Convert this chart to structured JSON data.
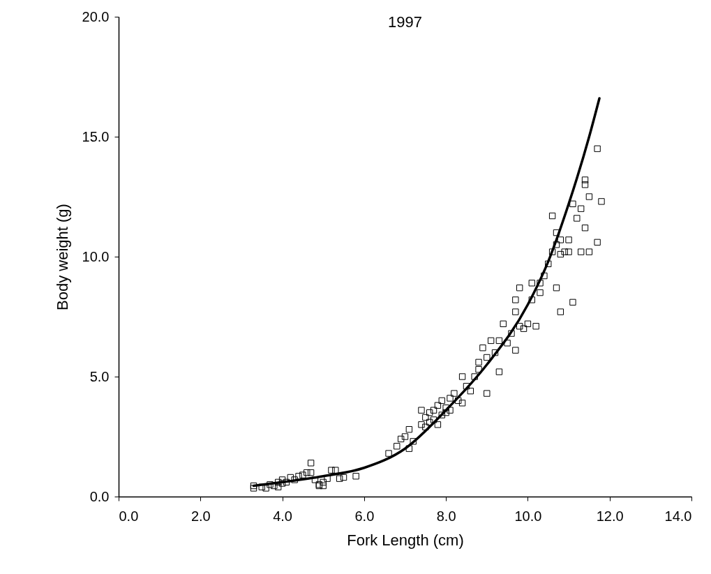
{
  "chart_data": {
    "type": "scatter",
    "title": "1997",
    "xlabel": "Fork Length (cm)",
    "ylabel": "Body weight (g)",
    "xlim": [
      0,
      14
    ],
    "ylim": [
      0,
      20
    ],
    "xticks": [
      {
        "value": 0,
        "label": "0.0"
      },
      {
        "value": 2,
        "label": "2.0"
      },
      {
        "value": 4,
        "label": "4.0"
      },
      {
        "value": 6,
        "label": "6.0"
      },
      {
        "value": 8,
        "label": "8.0"
      },
      {
        "value": 10,
        "label": "10.0"
      },
      {
        "value": 12,
        "label": "12.0"
      },
      {
        "value": 14,
        "label": "14.0"
      }
    ],
    "yticks": [
      {
        "value": 0,
        "label": "0.0"
      },
      {
        "value": 5,
        "label": "5.0"
      },
      {
        "value": 10,
        "label": "10.0"
      },
      {
        "value": 15,
        "label": "15.0"
      },
      {
        "value": 20,
        "label": "20.0"
      }
    ],
    "grid": false,
    "series": [
      {
        "marker": "square",
        "color": "#000000",
        "x": [
          3.3,
          3.3,
          3.5,
          3.6,
          3.7,
          3.8,
          3.9,
          3.9,
          4.0,
          4.0,
          4.1,
          4.2,
          4.3,
          4.4,
          4.5,
          4.6,
          4.7,
          4.7,
          4.8,
          4.9,
          4.9,
          5.0,
          5.0,
          5.1,
          5.2,
          5.3,
          5.4,
          5.5,
          5.8,
          6.6,
          6.8,
          6.9,
          7.0,
          7.1,
          7.1,
          7.2,
          7.4,
          7.4,
          7.5,
          7.5,
          7.6,
          7.6,
          7.7,
          7.7,
          7.8,
          7.8,
          7.9,
          7.9,
          8.0,
          8.0,
          8.1,
          8.1,
          8.2,
          8.3,
          8.4,
          8.4,
          8.5,
          8.6,
          8.7,
          8.8,
          8.8,
          8.9,
          9.0,
          9.0,
          9.1,
          9.2,
          9.3,
          9.3,
          9.4,
          9.5,
          9.6,
          9.7,
          9.7,
          9.7,
          9.8,
          9.8,
          9.9,
          10.0,
          10.1,
          10.1,
          10.2,
          10.3,
          10.3,
          10.4,
          10.5,
          10.6,
          10.6,
          10.7,
          10.7,
          10.7,
          10.8,
          10.8,
          10.8,
          10.9,
          11.0,
          11.0,
          11.1,
          11.1,
          11.2,
          11.3,
          11.3,
          11.4,
          11.4,
          11.4,
          11.5,
          11.5,
          11.7,
          11.7,
          11.8
        ],
        "values": [
          0.35,
          0.45,
          0.4,
          0.35,
          0.5,
          0.45,
          0.6,
          0.4,
          0.55,
          0.7,
          0.6,
          0.8,
          0.7,
          0.85,
          0.9,
          1.0,
          1.0,
          1.4,
          0.7,
          0.45,
          0.5,
          0.45,
          0.6,
          0.75,
          1.1,
          1.1,
          0.75,
          0.8,
          0.85,
          1.8,
          2.1,
          2.4,
          2.5,
          2.8,
          2.0,
          2.3,
          3.0,
          3.6,
          3.3,
          2.9,
          3.1,
          3.5,
          3.2,
          3.6,
          3.8,
          3.0,
          3.4,
          4.0,
          3.7,
          3.5,
          4.1,
          3.6,
          4.3,
          4.0,
          3.9,
          5.0,
          4.6,
          4.4,
          5.0,
          5.6,
          5.3,
          6.2,
          5.8,
          4.3,
          6.5,
          6.0,
          6.5,
          5.2,
          7.2,
          6.4,
          6.8,
          7.7,
          8.2,
          6.1,
          8.7,
          7.1,
          7.0,
          7.2,
          8.2,
          8.9,
          7.1,
          8.5,
          8.9,
          9.2,
          9.7,
          11.7,
          10.2,
          11.0,
          10.5,
          8.7,
          10.7,
          10.1,
          7.7,
          10.2,
          10.7,
          10.2,
          12.2,
          8.1,
          11.6,
          12.0,
          10.2,
          13.2,
          13.0,
          11.2,
          10.2,
          12.5,
          14.5,
          10.6,
          12.3
        ]
      },
      {
        "type": "line",
        "marker": "none",
        "line_style": "solid",
        "color": "#000000",
        "x": [
          3.3,
          4.0,
          5.0,
          6.0,
          7.0,
          8.0,
          9.0,
          10.0,
          10.5,
          11.0,
          11.5,
          11.75
        ],
        "values": [
          0.45,
          0.6,
          0.85,
          1.2,
          2.0,
          3.6,
          5.5,
          8.0,
          9.8,
          12.2,
          15.0,
          16.6
        ]
      }
    ]
  }
}
